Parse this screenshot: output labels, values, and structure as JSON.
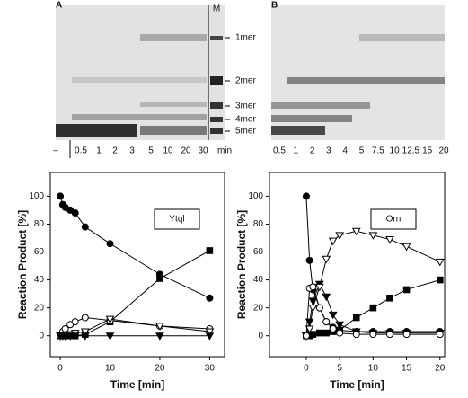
{
  "gels": {
    "A": {
      "label": "A",
      "marker_lane": "M",
      "lanes": [
        "–",
        "0.5",
        "1",
        "2",
        "3",
        "5",
        "10",
        "20",
        "30"
      ],
      "unit": "min"
    },
    "B": {
      "label": "B",
      "lanes": [
        "0.5",
        "1",
        "2",
        "3",
        "4",
        "5",
        "7.5",
        "10",
        "12.5",
        "15",
        "20"
      ]
    },
    "bands": [
      "1mer",
      "2mer",
      "3mer",
      "4mer",
      "5mer"
    ]
  },
  "chart_data": [
    {
      "type": "line",
      "annotation": "Ytql",
      "x_label": "Time [min]",
      "y_label": "Reaction Product [%]",
      "x": [
        0,
        0.5,
        1,
        2,
        3,
        5,
        10,
        20,
        30
      ],
      "xlim": [
        -2,
        33
      ],
      "xticks": [
        0,
        10,
        20,
        30
      ],
      "ylim": [
        -15,
        117
      ],
      "yticks": [
        0,
        20,
        40,
        60,
        80,
        100
      ],
      "series": [
        {
          "marker": "circle-filled",
          "color": "#000000",
          "values": [
            100,
            94,
            92,
            90,
            88,
            78,
            66,
            44,
            27
          ]
        },
        {
          "marker": "square-filled",
          "color": "#000000",
          "values": [
            0,
            0,
            0,
            0,
            0,
            1,
            10,
            41,
            61
          ]
        },
        {
          "marker": "circle-open",
          "color": "#000000",
          "values": [
            0,
            3,
            5,
            8,
            10,
            13,
            11,
            7,
            5
          ]
        },
        {
          "marker": "triangle-open",
          "color": "#000000",
          "values": [
            0,
            0,
            0,
            1,
            2,
            3,
            12,
            7,
            3
          ]
        },
        {
          "marker": "triangle-filled",
          "color": "#000000",
          "values": [
            0,
            0,
            0,
            0,
            0,
            0,
            0,
            0,
            0
          ]
        }
      ]
    },
    {
      "type": "line",
      "annotation": "Orn",
      "x_label": "Time [min]",
      "y_label": "Reaction Product [%]",
      "x": [
        0,
        0.5,
        1,
        2,
        3,
        4,
        5,
        7.5,
        10,
        12.5,
        15,
        20
      ],
      "xlim": [
        -5.5,
        20.7
      ],
      "xticks": [
        0,
        5,
        10,
        15,
        20
      ],
      "ylim": [
        -15,
        117
      ],
      "yticks": [
        0,
        20,
        40,
        60,
        80,
        100
      ],
      "series": [
        {
          "marker": "circle-filled",
          "color": "#000000",
          "values": [
            100,
            54,
            33,
            20,
            10,
            6,
            4,
            3,
            3,
            3,
            3,
            3
          ]
        },
        {
          "marker": "triangle-filled",
          "color": "#000000",
          "values": [
            0,
            10,
            25,
            37,
            28,
            15,
            8,
            3,
            2,
            2,
            2,
            2
          ]
        },
        {
          "marker": "square-filled",
          "color": "#000000",
          "values": [
            0,
            0,
            1,
            2,
            2,
            3,
            4,
            13,
            20,
            27,
            33,
            40
          ]
        },
        {
          "marker": "triangle-open",
          "color": "#000000",
          "values": [
            0,
            5,
            20,
            35,
            55,
            68,
            72,
            75,
            72,
            69,
            64,
            53
          ]
        },
        {
          "marker": "circle-open",
          "color": "#000000",
          "values": [
            0,
            34,
            35,
            20,
            10,
            5,
            2,
            1,
            1,
            1,
            1,
            1
          ]
        }
      ]
    }
  ]
}
